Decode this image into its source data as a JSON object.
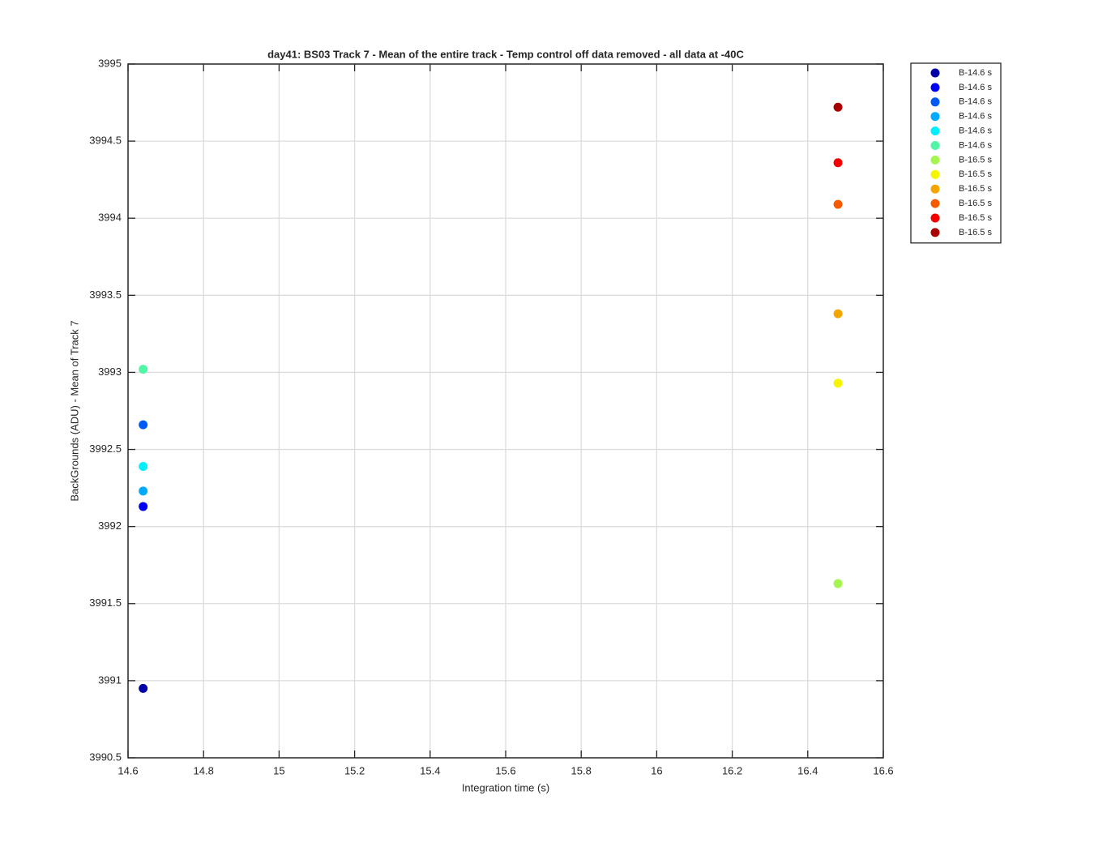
{
  "chart_data": {
    "type": "scatter",
    "title": "day41: BS03  Track 7 - Mean of the entire track - Temp control off data removed - all data at -40C",
    "x_label": "Integration time (s)",
    "y_label": "BackGrounds (ADU) - Mean of Track 7",
    "xlim": [
      14.6,
      16.6
    ],
    "xticks": [
      14.6,
      14.8,
      15,
      15.2,
      15.4,
      15.6,
      15.8,
      16,
      16.2,
      16.4,
      16.6
    ],
    "ylim": [
      3990.5,
      3995
    ],
    "yticks": [
      3990.5,
      3991,
      3991.5,
      3992,
      3992.5,
      3993,
      3993.5,
      3994,
      3994.5,
      3995
    ],
    "grid": true,
    "legend": "outside-top-right",
    "series": [
      {
        "name": "B-14.6 s",
        "color": "#0000a8",
        "x": [
          14.64
        ],
        "values": [
          3990.95
        ]
      },
      {
        "name": "B-14.6 s",
        "color": "#0000f5",
        "x": [
          14.64
        ],
        "values": [
          3992.13
        ]
      },
      {
        "name": "B-14.6 s",
        "color": "#005af5",
        "x": [
          14.64
        ],
        "values": [
          3992.66
        ]
      },
      {
        "name": "B-14.6 s",
        "color": "#00aaff",
        "x": [
          14.64
        ],
        "values": [
          3992.23
        ]
      },
      {
        "name": "B-14.6 s",
        "color": "#00f0ff",
        "x": [
          14.64
        ],
        "values": [
          3992.39
        ]
      },
      {
        "name": "B-14.6 s",
        "color": "#50f5a5",
        "x": [
          14.64
        ],
        "values": [
          3993.02
        ]
      },
      {
        "name": "B-16.5 s",
        "color": "#a5f550",
        "x": [
          16.48
        ],
        "values": [
          3991.63
        ]
      },
      {
        "name": "B-16.5 s",
        "color": "#f5f500",
        "x": [
          16.48
        ],
        "values": [
          3992.93
        ]
      },
      {
        "name": "B-16.5 s",
        "color": "#f5a500",
        "x": [
          16.48
        ],
        "values": [
          3993.38
        ]
      },
      {
        "name": "B-16.5 s",
        "color": "#f55a00",
        "x": [
          16.48
        ],
        "values": [
          3994.09
        ]
      },
      {
        "name": "B-16.5 s",
        "color": "#f50000",
        "x": [
          16.48
        ],
        "values": [
          3994.36
        ]
      },
      {
        "name": "B-16.5 s",
        "color": "#a80000",
        "x": [
          16.48
        ],
        "values": [
          3994.72
        ]
      }
    ]
  }
}
